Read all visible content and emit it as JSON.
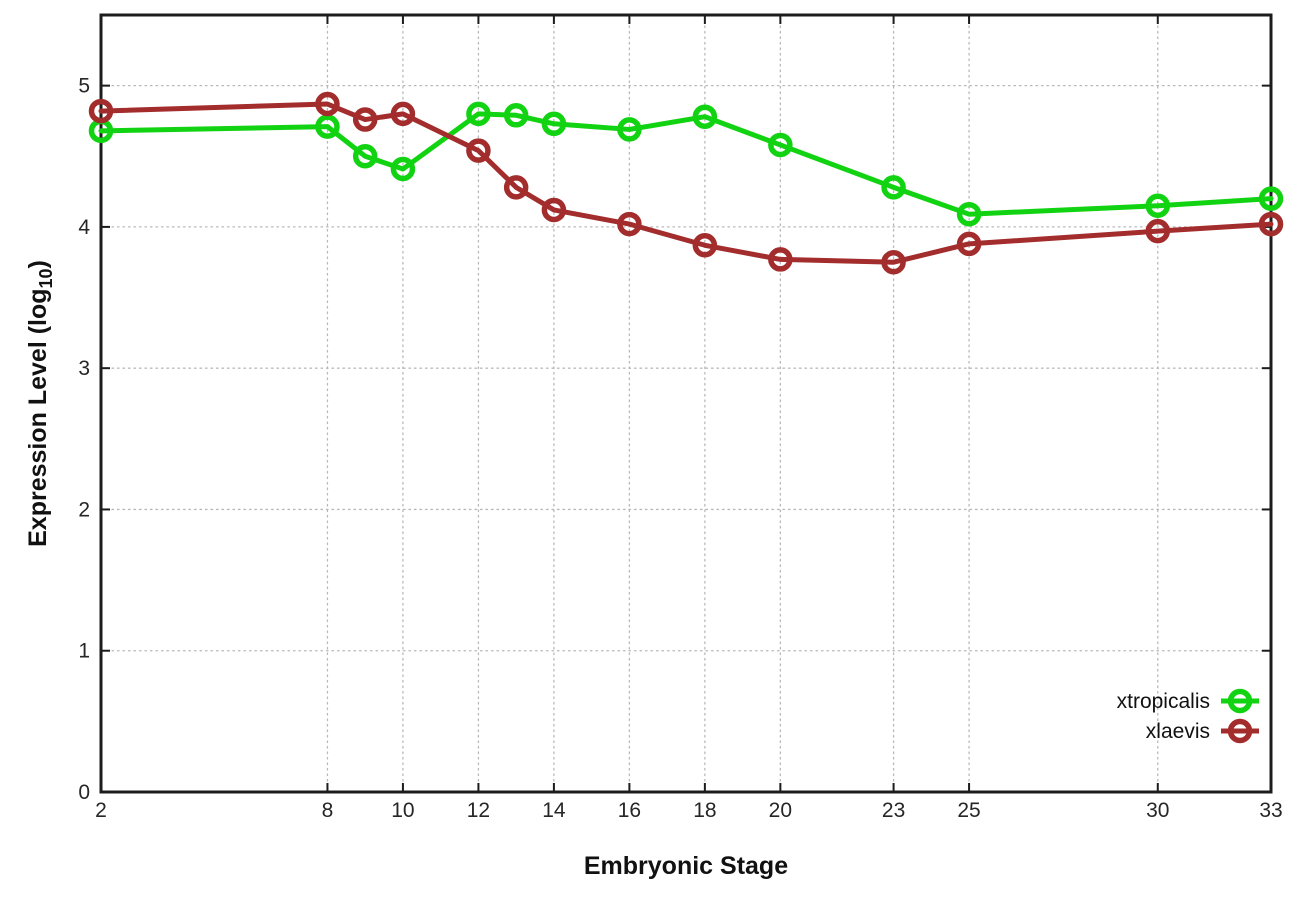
{
  "chart_data": {
    "type": "line",
    "title": "",
    "xlabel": "Embryonic Stage",
    "ylabel": {
      "pre": "Expression Level (log",
      "sub": "10",
      "post": ")"
    },
    "x": [
      2,
      8,
      9,
      10,
      12,
      13,
      14,
      16,
      18,
      20,
      23,
      25,
      30,
      33
    ],
    "xticks": [
      2,
      8,
      10,
      12,
      14,
      16,
      18,
      20,
      23,
      25,
      30,
      33
    ],
    "yticks": [
      0,
      1,
      2,
      3,
      4,
      5
    ],
    "xlim": [
      2,
      33
    ],
    "ylim": [
      0,
      5.5
    ],
    "grid": true,
    "legend_position": "inside-bottom-right",
    "series": [
      {
        "name": "xtropicalis",
        "color": "#12d312",
        "marker": "open-circle",
        "values": [
          4.68,
          4.71,
          4.5,
          4.41,
          4.8,
          4.79,
          4.73,
          4.69,
          4.78,
          4.58,
          4.28,
          4.09,
          4.15,
          4.2
        ]
      },
      {
        "name": "xlaevis",
        "color": "#a32c2c",
        "marker": "open-circle",
        "values": [
          4.82,
          4.87,
          4.76,
          4.8,
          4.54,
          4.28,
          4.12,
          4.02,
          3.87,
          3.77,
          3.75,
          3.88,
          3.97,
          4.02
        ]
      }
    ],
    "colors": {
      "border": "#1c1c1c",
      "grid": "#b8b8b8",
      "tick_text": "#262626",
      "label_text": "#111111",
      "background": "#ffffff"
    }
  }
}
